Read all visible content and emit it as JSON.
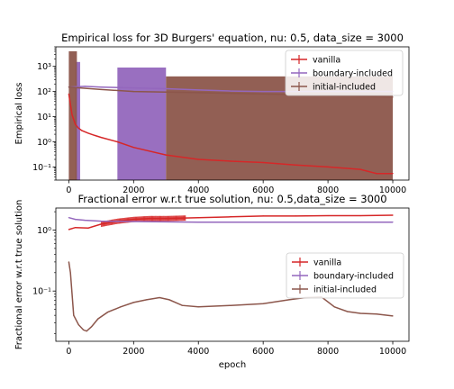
{
  "chart_data": [
    {
      "type": "line",
      "title": "Empirical loss for 3D Burgers' equation, nu: 0.5, data_size = 3000",
      "xlabel": "",
      "ylabel": "Empirical loss",
      "xlim": [
        -400,
        10500
      ],
      "xticks": [
        0,
        2000,
        4000,
        6000,
        8000,
        10000
      ],
      "yscale": "log",
      "ylim": [
        0.03,
        6000
      ],
      "yticks": [
        0.1,
        1,
        10,
        100,
        1000
      ],
      "ytick_labels": [
        "10⁻¹",
        "10⁰",
        "10¹",
        "10²",
        "10³"
      ],
      "legend_position": "upper-right",
      "error_bars": true,
      "series": [
        {
          "name": "vanilla",
          "color": "#d62728",
          "x": [
            0,
            100,
            200,
            300,
            400,
            600,
            800,
            1000,
            1500,
            2000,
            3000,
            4000,
            5000,
            6000,
            7000,
            8000,
            9000,
            9500,
            10000
          ],
          "y": [
            80,
            12,
            5,
            3.5,
            2.8,
            2.2,
            1.8,
            1.5,
            1.0,
            0.6,
            0.3,
            0.2,
            0.17,
            0.15,
            0.12,
            0.1,
            0.08,
            0.055,
            0.055
          ]
        },
        {
          "name": "boundary-included",
          "color": "#9467bd",
          "x": [
            0,
            500,
            1000,
            2000,
            3000,
            4000,
            5000,
            6000,
            7000,
            8000,
            9000,
            10000
          ],
          "y": [
            150,
            160,
            150,
            140,
            130,
            115,
            105,
            100,
            100,
            100,
            100,
            100
          ],
          "band": [
            {
              "from": 200,
              "to": 350,
              "low": 0.02,
              "high": 1500
            },
            {
              "from": 1500,
              "to": 3000,
              "low": 0.02,
              "high": 900
            }
          ]
        },
        {
          "name": "initial-included",
          "color": "#8c564b",
          "x": [
            0,
            1000,
            2000,
            3000,
            4000,
            5000,
            6000,
            7000,
            8000,
            9000,
            10000
          ],
          "y": [
            150,
            120,
            100,
            95,
            90,
            85,
            80,
            75,
            70,
            65,
            60
          ],
          "band": [
            {
              "from": 0,
              "to": 250,
              "low": 0.02,
              "high": 4000
            },
            {
              "from": 3000,
              "to": 10000,
              "low": 0.02,
              "high": 400
            }
          ]
        }
      ]
    },
    {
      "type": "line",
      "title": "Fractional error w.r.t true solution, nu: 0.5,data_size = 3000",
      "xlabel": "epoch",
      "ylabel": "Fractional error w.r.t true solution",
      "xlim": [
        -400,
        10500
      ],
      "xticks": [
        0,
        2000,
        4000,
        6000,
        8000,
        10000
      ],
      "yscale": "log",
      "ylim": [
        0.015,
        2.3
      ],
      "yticks": [
        0.1,
        1
      ],
      "ytick_labels": [
        "10⁻¹",
        "10⁰"
      ],
      "legend_position": "center-right",
      "error_bars": true,
      "series": [
        {
          "name": "vanilla",
          "color": "#d62728",
          "x": [
            0,
            200,
            600,
            1000,
            1500,
            2000,
            2500,
            3000,
            4000,
            5000,
            6000,
            7000,
            8000,
            9000,
            10000
          ],
          "y": [
            1.02,
            1.1,
            1.08,
            1.25,
            1.4,
            1.5,
            1.55,
            1.55,
            1.6,
            1.65,
            1.7,
            1.7,
            1.72,
            1.72,
            1.75
          ],
          "errbar": {
            "from": 1000,
            "to": 3600,
            "spread": 0.1
          }
        },
        {
          "name": "boundary-included",
          "color": "#9467bd",
          "x": [
            0,
            200,
            500,
            1000,
            2000,
            4000,
            6000,
            8000,
            10000
          ],
          "y": [
            1.6,
            1.5,
            1.45,
            1.4,
            1.38,
            1.35,
            1.35,
            1.35,
            1.35
          ]
        },
        {
          "name": "initial-included",
          "color": "#8c564b",
          "x": [
            0,
            50,
            150,
            300,
            450,
            550,
            700,
            900,
            1200,
            1600,
            2000,
            2400,
            2800,
            3100,
            3500,
            4000,
            5000,
            6000,
            6800,
            7300,
            7800,
            8200,
            8600,
            9000,
            9500,
            10000
          ],
          "y": [
            0.3,
            0.2,
            0.04,
            0.028,
            0.023,
            0.022,
            0.026,
            0.035,
            0.045,
            0.055,
            0.065,
            0.072,
            0.078,
            0.072,
            0.058,
            0.055,
            0.058,
            0.062,
            0.072,
            0.078,
            0.08,
            0.055,
            0.046,
            0.043,
            0.042,
            0.039
          ]
        }
      ]
    }
  ]
}
